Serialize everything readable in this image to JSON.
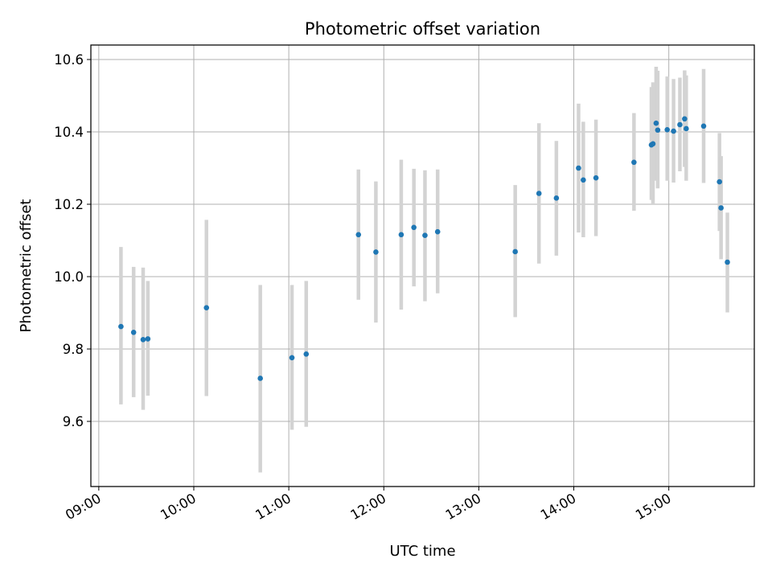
{
  "chart_data": {
    "type": "scatter",
    "title": "Photometric offset variation",
    "xlabel": "UTC time",
    "ylabel": "Photometric offset",
    "x_ticks": [
      "09:00",
      "10:00",
      "11:00",
      "12:00",
      "13:00",
      "14:00",
      "15:00"
    ],
    "y_ticks": [
      "9.6",
      "9.8",
      "10.0",
      "10.2",
      "10.4",
      "10.6"
    ],
    "xlim": [
      "08:55",
      "15:54"
    ],
    "ylim": [
      9.42,
      10.64
    ],
    "grid": true,
    "colors": {
      "points": "#1f77b4",
      "errorbars": "#d3d3d3",
      "grid": "#b0b0b0"
    },
    "series": [
      {
        "points": [
          {
            "x": "09:14",
            "y": 9.862,
            "yerr_low": 9.647,
            "yerr_high": 10.082
          },
          {
            "x": "09:22",
            "y": 9.846,
            "yerr_low": 9.667,
            "yerr_high": 10.027
          },
          {
            "x": "09:28",
            "y": 9.826,
            "yerr_low": 9.632,
            "yerr_high": 10.025
          },
          {
            "x": "09:31",
            "y": 9.828,
            "yerr_low": 9.671,
            "yerr_high": 9.988
          },
          {
            "x": "10:08",
            "y": 9.914,
            "yerr_low": 9.67,
            "yerr_high": 10.157
          },
          {
            "x": "10:42",
            "y": 9.719,
            "yerr_low": 9.459,
            "yerr_high": 9.977
          },
          {
            "x": "11:02",
            "y": 9.776,
            "yerr_low": 9.577,
            "yerr_high": 9.977
          },
          {
            "x": "11:11",
            "y": 9.786,
            "yerr_low": 9.585,
            "yerr_high": 9.988
          },
          {
            "x": "11:44",
            "y": 10.116,
            "yerr_low": 9.936,
            "yerr_high": 10.296
          },
          {
            "x": "11:55",
            "y": 10.068,
            "yerr_low": 9.873,
            "yerr_high": 10.263
          },
          {
            "x": "12:11",
            "y": 10.116,
            "yerr_low": 9.909,
            "yerr_high": 10.323
          },
          {
            "x": "12:19",
            "y": 10.136,
            "yerr_low": 9.973,
            "yerr_high": 10.298
          },
          {
            "x": "12:26",
            "y": 10.114,
            "yerr_low": 9.932,
            "yerr_high": 10.294
          },
          {
            "x": "12:34",
            "y": 10.124,
            "yerr_low": 9.954,
            "yerr_high": 10.296
          },
          {
            "x": "13:23",
            "y": 10.069,
            "yerr_low": 9.888,
            "yerr_high": 10.253
          },
          {
            "x": "13:38",
            "y": 10.23,
            "yerr_low": 10.036,
            "yerr_high": 10.424
          },
          {
            "x": "13:49",
            "y": 10.217,
            "yerr_low": 10.058,
            "yerr_high": 10.375
          },
          {
            "x": "14:03",
            "y": 10.3,
            "yerr_low": 10.122,
            "yerr_high": 10.478
          },
          {
            "x": "14:06",
            "y": 10.267,
            "yerr_low": 10.109,
            "yerr_high": 10.428
          },
          {
            "x": "14:14",
            "y": 10.273,
            "yerr_low": 10.112,
            "yerr_high": 10.434
          },
          {
            "x": "14:38",
            "y": 10.316,
            "yerr_low": 10.182,
            "yerr_high": 10.452
          },
          {
            "x": "14:49",
            "y": 10.364,
            "yerr_low": 10.212,
            "yerr_high": 10.524
          },
          {
            "x": "14:50",
            "y": 10.367,
            "yerr_low": 10.2,
            "yerr_high": 10.537
          },
          {
            "x": "14:52",
            "y": 10.424,
            "yerr_low": 10.265,
            "yerr_high": 10.58
          },
          {
            "x": "14:53",
            "y": 10.405,
            "yerr_low": 10.244,
            "yerr_high": 10.569
          },
          {
            "x": "14:59",
            "y": 10.406,
            "yerr_low": 10.265,
            "yerr_high": 10.553
          },
          {
            "x": "15:03",
            "y": 10.402,
            "yerr_low": 10.26,
            "yerr_high": 10.546
          },
          {
            "x": "15:07",
            "y": 10.42,
            "yerr_low": 10.291,
            "yerr_high": 10.55
          },
          {
            "x": "15:10",
            "y": 10.436,
            "yerr_low": 10.303,
            "yerr_high": 10.57
          },
          {
            "x": "15:11",
            "y": 10.409,
            "yerr_low": 10.265,
            "yerr_high": 10.556
          },
          {
            "x": "15:22",
            "y": 10.416,
            "yerr_low": 10.259,
            "yerr_high": 10.574
          },
          {
            "x": "15:32",
            "y": 10.262,
            "yerr_low": 10.126,
            "yerr_high": 10.397
          },
          {
            "x": "15:33",
            "y": 10.19,
            "yerr_low": 10.048,
            "yerr_high": 10.333
          },
          {
            "x": "15:37",
            "y": 10.04,
            "yerr_low": 9.901,
            "yerr_high": 10.177
          }
        ]
      }
    ]
  }
}
